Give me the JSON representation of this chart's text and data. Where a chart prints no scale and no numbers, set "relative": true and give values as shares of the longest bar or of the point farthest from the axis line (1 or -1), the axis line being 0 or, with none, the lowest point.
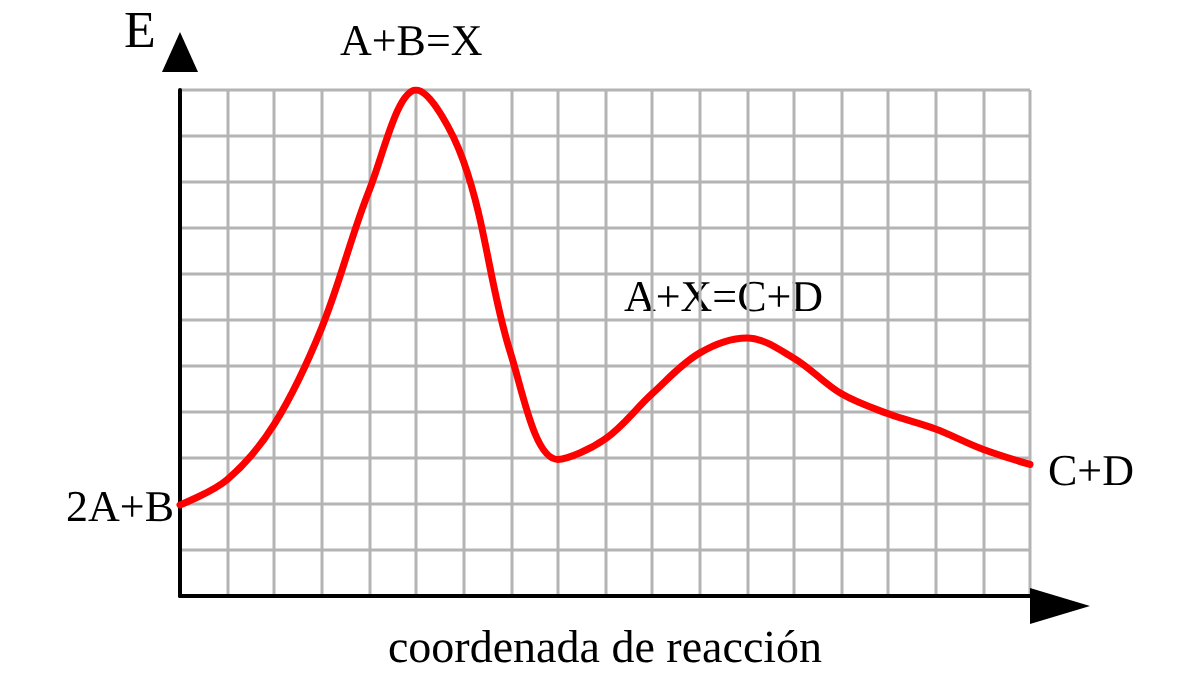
{
  "chart_data": {
    "type": "line",
    "relative": true,
    "ylabel": "E",
    "xlabel": "coordenada de reacción",
    "categories": [
      null,
      null,
      null,
      null,
      null,
      null,
      null,
      null,
      null,
      null,
      null,
      null,
      null,
      null,
      null,
      null,
      null,
      null,
      null
    ],
    "series": [
      {
        "color": "#ff0000",
        "values": [
          0.18,
          0.23,
          0.34,
          0.53,
          0.8,
          1.0,
          0.86,
          0.48,
          0.27,
          0.31,
          0.4,
          0.48,
          0.51,
          0.47,
          0.4,
          0.36,
          0.33,
          0.29,
          0.26
        ]
      }
    ],
    "annotations": [
      "2A+B",
      "A+B=X",
      "A+X=C+D",
      "C+D"
    ],
    "grid": true,
    "marker": "none",
    "line_style": "solid"
  }
}
